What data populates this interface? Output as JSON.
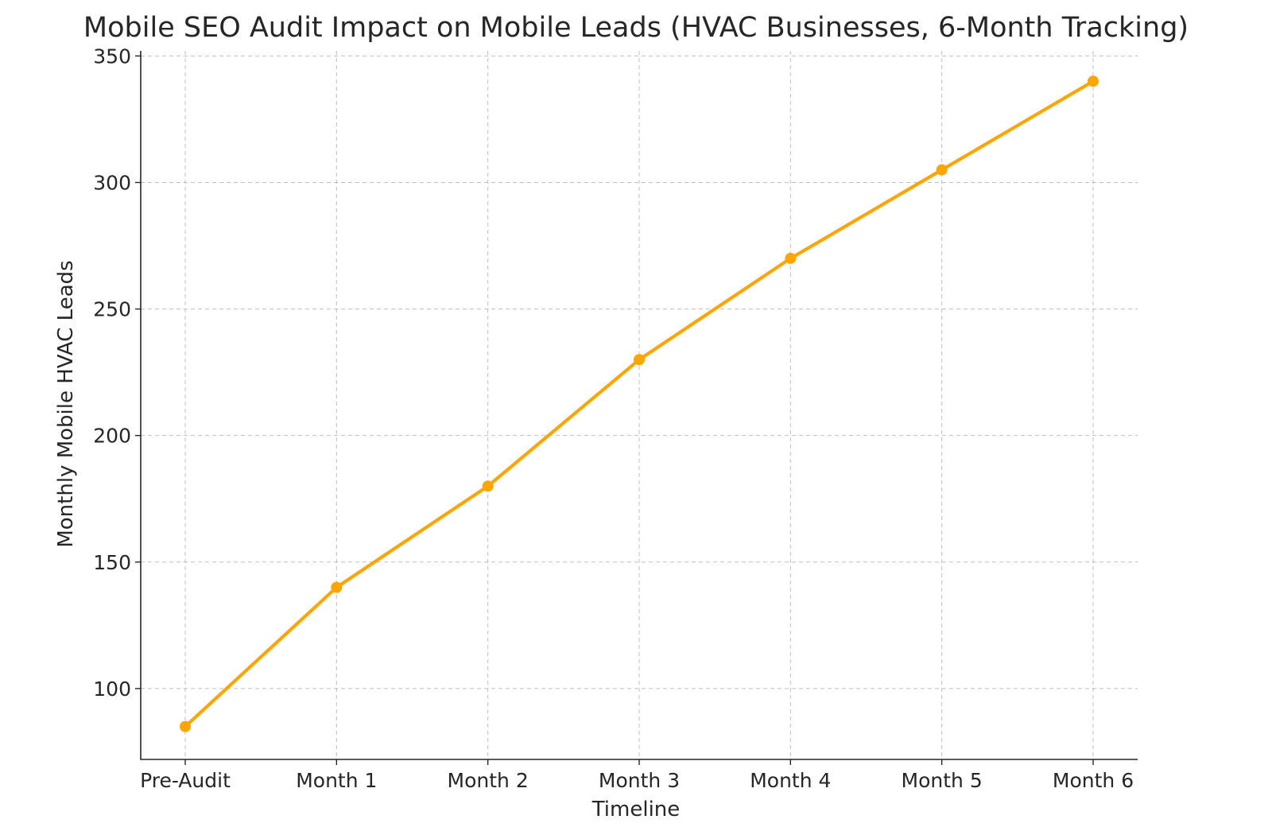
{
  "chart_data": {
    "type": "line",
    "title": "Mobile SEO Audit Impact on Mobile Leads (HVAC Businesses, 6-Month Tracking)",
    "xlabel": "Timeline",
    "ylabel": "Monthly Mobile HVAC Leads",
    "categories": [
      "Pre-Audit",
      "Month 1",
      "Month 2",
      "Month 3",
      "Month 4",
      "Month 5",
      "Month 6"
    ],
    "series": [
      {
        "values": [
          85,
          140,
          180,
          230,
          270,
          305,
          340
        ],
        "color": "#FFA500",
        "marker": "circle"
      }
    ],
    "ylim": [
      72,
      352
    ],
    "yticks": [
      100,
      150,
      200,
      250,
      300,
      350
    ],
    "grid": true,
    "legend": "none"
  }
}
